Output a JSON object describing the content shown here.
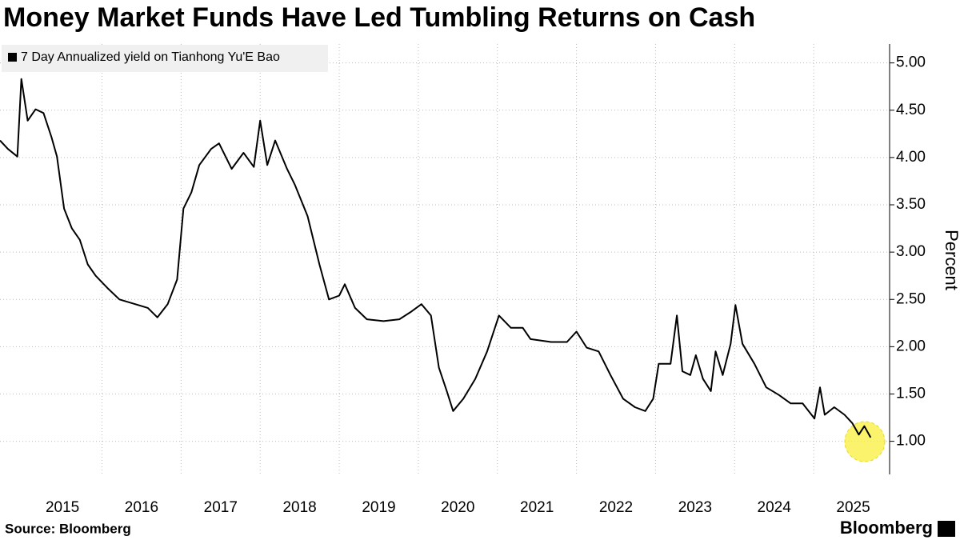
{
  "chart_data": {
    "type": "line",
    "title": "Money Market Funds Have Led Tumbling Returns on Cash",
    "y_label": "Percent",
    "source": "Source: Bloomberg",
    "brand": "Bloomberg",
    "series": [
      {
        "name": "7 Day Annualized yield on Tianhong Yu'E Bao",
        "color": "#000000",
        "x": [
          2014.71,
          2014.81,
          2014.93,
          2014.98,
          2015.06,
          2015.16,
          2015.26,
          2015.36,
          2015.43,
          2015.52,
          2015.62,
          2015.72,
          2015.82,
          2015.92,
          2016.07,
          2016.22,
          2016.42,
          2016.58,
          2016.7,
          2016.83,
          2016.95,
          2017.03,
          2017.13,
          2017.23,
          2017.38,
          2017.48,
          2017.64,
          2017.79,
          2017.92,
          2018.0,
          2018.09,
          2018.19,
          2018.34,
          2018.44,
          2018.6,
          2018.75,
          2018.87,
          2019.0,
          2019.07,
          2019.2,
          2019.35,
          2019.56,
          2019.76,
          2019.91,
          2020.04,
          2020.16,
          2020.26,
          2020.36,
          2020.44,
          2020.57,
          2020.72,
          2020.87,
          2021.02,
          2021.17,
          2021.32,
          2021.42,
          2021.68,
          2021.88,
          2022.0,
          2022.13,
          2022.28,
          2022.43,
          2022.59,
          2022.74,
          2022.87,
          2022.97,
          2023.04,
          2023.19,
          2023.27,
          2023.34,
          2023.44,
          2023.51,
          2023.6,
          2023.7,
          2023.76,
          2023.85,
          2023.95,
          2024.01,
          2024.1,
          2024.25,
          2024.4,
          2024.56,
          2024.71,
          2024.86,
          2025.01,
          2025.08,
          2025.14,
          2025.26,
          2025.39,
          2025.49,
          2025.57,
          2025.64,
          2025.72
        ],
        "values": [
          4.18,
          4.09,
          4.01,
          4.83,
          4.39,
          4.51,
          4.47,
          4.22,
          4.01,
          3.46,
          3.25,
          3.13,
          2.87,
          2.75,
          2.62,
          2.5,
          2.45,
          2.41,
          2.31,
          2.45,
          2.71,
          3.46,
          3.63,
          3.92,
          4.09,
          4.15,
          3.88,
          4.05,
          3.9,
          4.39,
          3.92,
          4.18,
          3.88,
          3.71,
          3.38,
          2.87,
          2.5,
          2.54,
          2.66,
          2.41,
          2.29,
          2.27,
          2.29,
          2.37,
          2.45,
          2.33,
          1.78,
          1.53,
          1.32,
          1.45,
          1.66,
          1.95,
          2.33,
          2.2,
          2.2,
          2.08,
          2.05,
          2.05,
          2.16,
          1.99,
          1.95,
          1.7,
          1.45,
          1.36,
          1.32,
          1.45,
          1.82,
          1.82,
          2.33,
          1.74,
          1.7,
          1.91,
          1.66,
          1.53,
          1.95,
          1.7,
          2.03,
          2.44,
          2.03,
          1.82,
          1.57,
          1.49,
          1.4,
          1.4,
          1.24,
          1.57,
          1.28,
          1.36,
          1.28,
          1.19,
          1.07,
          1.16,
          1.04
        ]
      }
    ],
    "xlim": [
      2014.71,
      2025.96
    ],
    "xticks": [
      2015,
      2016,
      2017,
      2018,
      2019,
      2020,
      2021,
      2022,
      2023,
      2024,
      2025
    ],
    "ylim": [
      0.65,
      5.2
    ],
    "yticks": [
      {
        "value": 1,
        "label": "1.00"
      },
      {
        "value": 1.5,
        "label": "1.50"
      },
      {
        "value": 2,
        "label": "2.00"
      },
      {
        "value": 2.5,
        "label": "2.50"
      },
      {
        "value": 3,
        "label": "3.00"
      },
      {
        "value": 3.5,
        "label": "3.50"
      },
      {
        "value": 4,
        "label": "4.00"
      },
      {
        "value": 4.5,
        "label": "4.50"
      },
      {
        "value": 5,
        "label": "5.00"
      }
    ],
    "grid": true,
    "legend": "top-left"
  }
}
